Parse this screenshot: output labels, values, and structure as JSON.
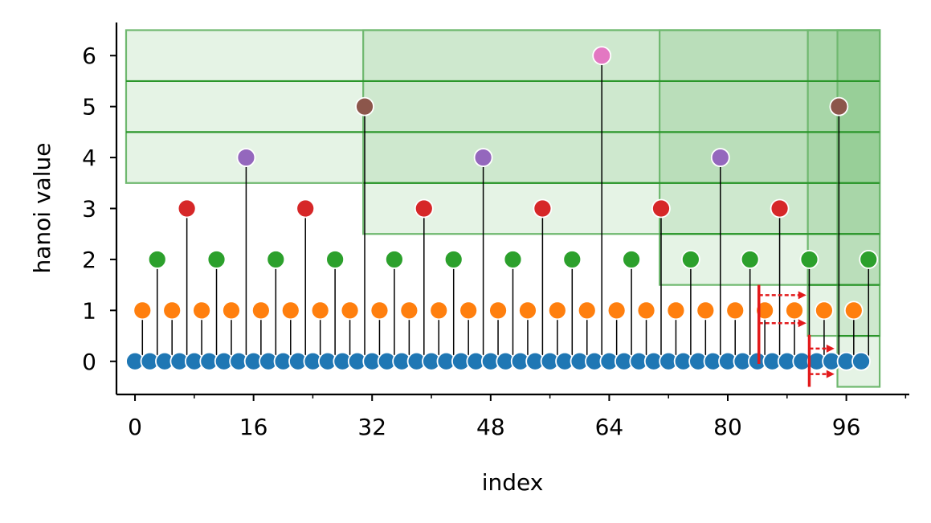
{
  "chart_data": {
    "type": "scatter",
    "xlabel": "index",
    "ylabel": "hanoi value",
    "xlim": [
      -2.5,
      104.5
    ],
    "ylim": [
      -0.65,
      6.65
    ],
    "xticks": [
      0,
      16,
      32,
      48,
      64,
      80,
      96
    ],
    "xticks_minor": [
      8,
      24,
      40,
      56,
      72,
      88,
      104
    ],
    "yticks": [
      0,
      1,
      2,
      3,
      4,
      5,
      6
    ],
    "grid": false,
    "level_colors": [
      "#1f77b4",
      "#ff7f0e",
      "#2ca02c",
      "#d62728",
      "#9467bd",
      "#8c564b",
      "#e377c2"
    ],
    "values": [
      0,
      1,
      0,
      2,
      0,
      1,
      0,
      3,
      0,
      1,
      0,
      2,
      0,
      1,
      0,
      4,
      0,
      1,
      0,
      2,
      0,
      1,
      0,
      3,
      0,
      1,
      0,
      2,
      0,
      1,
      0,
      5,
      0,
      1,
      0,
      2,
      0,
      1,
      0,
      3,
      0,
      1,
      0,
      2,
      0,
      1,
      0,
      4,
      0,
      1,
      0,
      2,
      0,
      1,
      0,
      3,
      0,
      1,
      0,
      2,
      0,
      1,
      0,
      6,
      0,
      1,
      0,
      2,
      0,
      1,
      0,
      3,
      0,
      1,
      0,
      2,
      0,
      1,
      0,
      4,
      0,
      1,
      0,
      2,
      0,
      1,
      0,
      3,
      0,
      1,
      0,
      2,
      0,
      1,
      0,
      5,
      0,
      1,
      0,
      2
    ],
    "boxes": [
      {
        "x0": -1.2,
        "x1": 100.5,
        "y0": 3.5,
        "y1": 6.5
      },
      {
        "x0": 30.8,
        "x1": 100.5,
        "y0": 2.5,
        "y1": 6.5
      },
      {
        "x0": 70.8,
        "x1": 100.5,
        "y0": 1.5,
        "y1": 6.5
      },
      {
        "x0": 90.8,
        "x1": 100.5,
        "y0": 0.5,
        "y1": 6.5
      },
      {
        "x0": 94.8,
        "x1": 100.5,
        "y0": -0.5,
        "y1": 6.5
      }
    ],
    "box_lines": [
      {
        "x0": -1.2,
        "x1": 100.5,
        "y": 5.5
      },
      {
        "x0": -1.2,
        "x1": 100.5,
        "y": 4.5
      },
      {
        "x0": 30.8,
        "x1": 100.5,
        "y": 3.5
      },
      {
        "x0": 70.8,
        "x1": 100.5,
        "y": 2.5
      },
      {
        "x0": 90.8,
        "x1": 100.5,
        "y": 1.5
      },
      {
        "x0": 94.8,
        "x1": 100.5,
        "y": 0.5
      }
    ],
    "annotations": [
      {
        "bar_x": 84.2,
        "y_low": -0.05,
        "y_high": 1.5,
        "arrows": [
          {
            "x0": 84.2,
            "x1": 90.6,
            "y": 1.3
          },
          {
            "x0": 84.2,
            "x1": 90.6,
            "y": 0.75
          }
        ]
      },
      {
        "bar_x": 91.0,
        "y_low": -0.5,
        "y_high": 0.52,
        "arrows": [
          {
            "x0": 91.0,
            "x1": 94.4,
            "y": 0.25
          },
          {
            "x0": 91.0,
            "x1": 94.4,
            "y": -0.25
          }
        ]
      }
    ]
  }
}
